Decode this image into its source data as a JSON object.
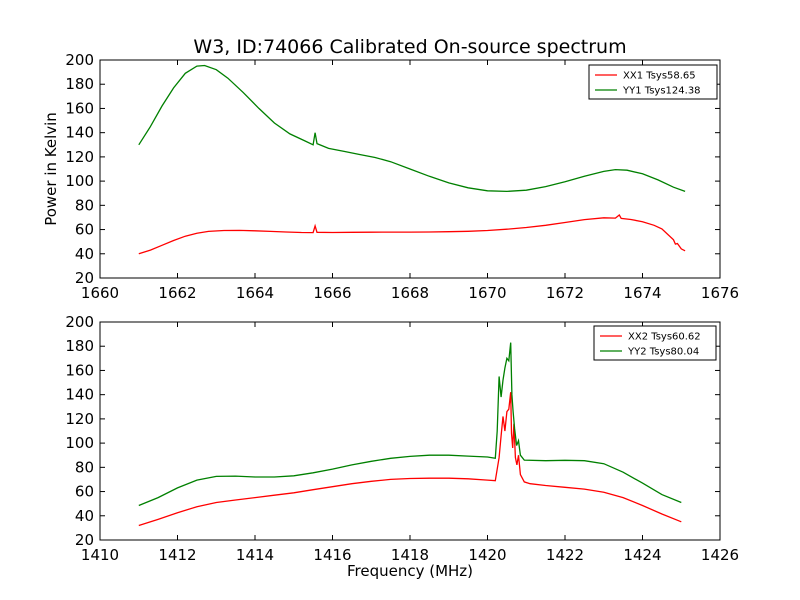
{
  "figure": {
    "title": "W3, ID:74066 Calibrated On-source spectrum",
    "ylabel": "Power in Kelvin",
    "xlabel": "Frequency (MHz)"
  },
  "colors": {
    "red": "#ff0000",
    "green": "#008000"
  },
  "chart_data": [
    {
      "type": "line",
      "title": "W3, ID:74066 Calibrated On-source spectrum",
      "ylabel": "Power in Kelvin",
      "xlabel": "",
      "xlim": [
        1660,
        1676
      ],
      "ylim": [
        20,
        200
      ],
      "xticks": [
        1660,
        1662,
        1664,
        1666,
        1668,
        1670,
        1672,
        1674,
        1676
      ],
      "yticks": [
        20,
        40,
        60,
        80,
        100,
        120,
        140,
        160,
        180,
        200
      ],
      "grid": false,
      "legend": "top-right",
      "series": [
        {
          "name": "XX1 Tsys58.65",
          "color": "#ff0000",
          "points": [
            [
              1661.0,
              40
            ],
            [
              1661.3,
              43
            ],
            [
              1661.6,
              47
            ],
            [
              1661.9,
              51
            ],
            [
              1662.2,
              54.5
            ],
            [
              1662.5,
              57
            ],
            [
              1662.8,
              58.5
            ],
            [
              1663.2,
              59.2
            ],
            [
              1663.6,
              59.3
            ],
            [
              1664.0,
              59
            ],
            [
              1664.4,
              58.5
            ],
            [
              1664.8,
              58
            ],
            [
              1665.2,
              57.6
            ],
            [
              1665.5,
              57.5
            ],
            [
              1665.55,
              63
            ],
            [
              1665.6,
              57.7
            ],
            [
              1666.0,
              57.6
            ],
            [
              1666.5,
              57.7
            ],
            [
              1667.0,
              57.8
            ],
            [
              1667.5,
              57.9
            ],
            [
              1668.0,
              57.9
            ],
            [
              1668.5,
              58
            ],
            [
              1669.0,
              58.2
            ],
            [
              1669.5,
              58.6
            ],
            [
              1670.0,
              59.2
            ],
            [
              1670.5,
              60.3
            ],
            [
              1671.0,
              61.7
            ],
            [
              1671.5,
              63.5
            ],
            [
              1672.0,
              65.8
            ],
            [
              1672.5,
              68.2
            ],
            [
              1673.0,
              69.7
            ],
            [
              1673.3,
              69.5
            ],
            [
              1673.4,
              72
            ],
            [
              1673.45,
              69.2
            ],
            [
              1673.7,
              68.3
            ],
            [
              1674.0,
              66.5
            ],
            [
              1674.3,
              63.5
            ],
            [
              1674.5,
              60.5
            ],
            [
              1674.8,
              51.5
            ],
            [
              1674.85,
              48
            ],
            [
              1674.9,
              48.5
            ],
            [
              1675.0,
              44
            ],
            [
              1675.1,
              42.5
            ]
          ]
        },
        {
          "name": "YY1 Tsys124.38",
          "color": "#008000",
          "points": [
            [
              1661.0,
              130
            ],
            [
              1661.3,
              145
            ],
            [
              1661.6,
              162
            ],
            [
              1661.9,
              177
            ],
            [
              1662.2,
              189
            ],
            [
              1662.5,
              195
            ],
            [
              1662.7,
              195.5
            ],
            [
              1663.0,
              192
            ],
            [
              1663.3,
              185
            ],
            [
              1663.7,
              173
            ],
            [
              1664.1,
              160
            ],
            [
              1664.5,
              148
            ],
            [
              1664.9,
              139
            ],
            [
              1665.3,
              133
            ],
            [
              1665.5,
              130
            ],
            [
              1665.55,
              140
            ],
            [
              1665.6,
              131
            ],
            [
              1665.9,
              127
            ],
            [
              1666.3,
              124.5
            ],
            [
              1666.7,
              122
            ],
            [
              1667.1,
              119.5
            ],
            [
              1667.5,
              116
            ],
            [
              1668.0,
              110
            ],
            [
              1668.5,
              104
            ],
            [
              1669.0,
              98.5
            ],
            [
              1669.5,
              94.5
            ],
            [
              1670.0,
              92
            ],
            [
              1670.5,
              91.5
            ],
            [
              1671.0,
              92.5
            ],
            [
              1671.5,
              95.5
            ],
            [
              1672.0,
              99.5
            ],
            [
              1672.5,
              104
            ],
            [
              1673.0,
              108
            ],
            [
              1673.3,
              109.5
            ],
            [
              1673.6,
              109
            ],
            [
              1674.0,
              106
            ],
            [
              1674.4,
              101
            ],
            [
              1674.8,
              95
            ],
            [
              1675.1,
              91.5
            ]
          ]
        }
      ]
    },
    {
      "type": "line",
      "title": "",
      "ylabel": "Power in Kelvin",
      "xlabel": "Frequency (MHz)",
      "xlim": [
        1410,
        1426
      ],
      "ylim": [
        20,
        200
      ],
      "xticks": [
        1410,
        1412,
        1414,
        1416,
        1418,
        1420,
        1422,
        1424,
        1426
      ],
      "yticks": [
        20,
        40,
        60,
        80,
        100,
        120,
        140,
        160,
        180,
        200
      ],
      "grid": false,
      "legend": "top-right",
      "series": [
        {
          "name": "XX2 Tsys60.62",
          "color": "#ff0000",
          "points": [
            [
              1411.0,
              32
            ],
            [
              1411.5,
              37
            ],
            [
              1412.0,
              42.5
            ],
            [
              1412.5,
              47.5
            ],
            [
              1413.0,
              51
            ],
            [
              1413.5,
              53
            ],
            [
              1414.0,
              55
            ],
            [
              1414.5,
              57
            ],
            [
              1415.0,
              59
            ],
            [
              1415.5,
              61.5
            ],
            [
              1416.0,
              64
            ],
            [
              1416.5,
              66.5
            ],
            [
              1417.0,
              68.5
            ],
            [
              1417.5,
              70
            ],
            [
              1418.0,
              70.8
            ],
            [
              1418.5,
              71
            ],
            [
              1419.0,
              71
            ],
            [
              1419.5,
              70.5
            ],
            [
              1420.0,
              69.5
            ],
            [
              1420.2,
              69
            ],
            [
              1420.3,
              88
            ],
            [
              1420.35,
              106
            ],
            [
              1420.4,
              122
            ],
            [
              1420.45,
              110
            ],
            [
              1420.5,
              126
            ],
            [
              1420.55,
              128
            ],
            [
              1420.6,
              142
            ],
            [
              1420.62,
              108
            ],
            [
              1420.65,
              96
            ],
            [
              1420.68,
              116
            ],
            [
              1420.72,
              88
            ],
            [
              1420.76,
              82
            ],
            [
              1420.8,
              90
            ],
            [
              1420.85,
              74
            ],
            [
              1420.95,
              68
            ],
            [
              1421.1,
              66.5
            ],
            [
              1421.5,
              65
            ],
            [
              1422.0,
              63.5
            ],
            [
              1422.5,
              62
            ],
            [
              1423.0,
              59.5
            ],
            [
              1423.5,
              55
            ],
            [
              1424.0,
              48.5
            ],
            [
              1424.5,
              41.5
            ],
            [
              1425.0,
              35
            ]
          ]
        },
        {
          "name": "YY2 Tsys80.04",
          "color": "#008000",
          "points": [
            [
              1411.0,
              48.5
            ],
            [
              1411.5,
              55
            ],
            [
              1412.0,
              63
            ],
            [
              1412.5,
              69.5
            ],
            [
              1413.0,
              72.5
            ],
            [
              1413.5,
              72.8
            ],
            [
              1414.0,
              72
            ],
            [
              1414.5,
              72
            ],
            [
              1415.0,
              73
            ],
            [
              1415.5,
              75.5
            ],
            [
              1416.0,
              78.5
            ],
            [
              1416.5,
              82
            ],
            [
              1417.0,
              85
            ],
            [
              1417.5,
              87.5
            ],
            [
              1418.0,
              89
            ],
            [
              1418.5,
              90
            ],
            [
              1419.0,
              90
            ],
            [
              1419.5,
              89.3
            ],
            [
              1420.0,
              88.5
            ],
            [
              1420.2,
              87.5
            ],
            [
              1420.25,
              110
            ],
            [
              1420.3,
              155
            ],
            [
              1420.35,
              138
            ],
            [
              1420.4,
              152
            ],
            [
              1420.45,
              162
            ],
            [
              1420.5,
              170
            ],
            [
              1420.55,
              168
            ],
            [
              1420.6,
              183
            ],
            [
              1420.63,
              140
            ],
            [
              1420.66,
              126
            ],
            [
              1420.7,
              112
            ],
            [
              1420.75,
              98
            ],
            [
              1420.8,
              102
            ],
            [
              1420.85,
              90
            ],
            [
              1420.95,
              86
            ],
            [
              1421.5,
              85.5
            ],
            [
              1422.0,
              85.8
            ],
            [
              1422.5,
              85.5
            ],
            [
              1423.0,
              83
            ],
            [
              1423.5,
              76
            ],
            [
              1424.0,
              67
            ],
            [
              1424.5,
              57.5
            ],
            [
              1425.0,
              51
            ]
          ]
        }
      ]
    }
  ]
}
